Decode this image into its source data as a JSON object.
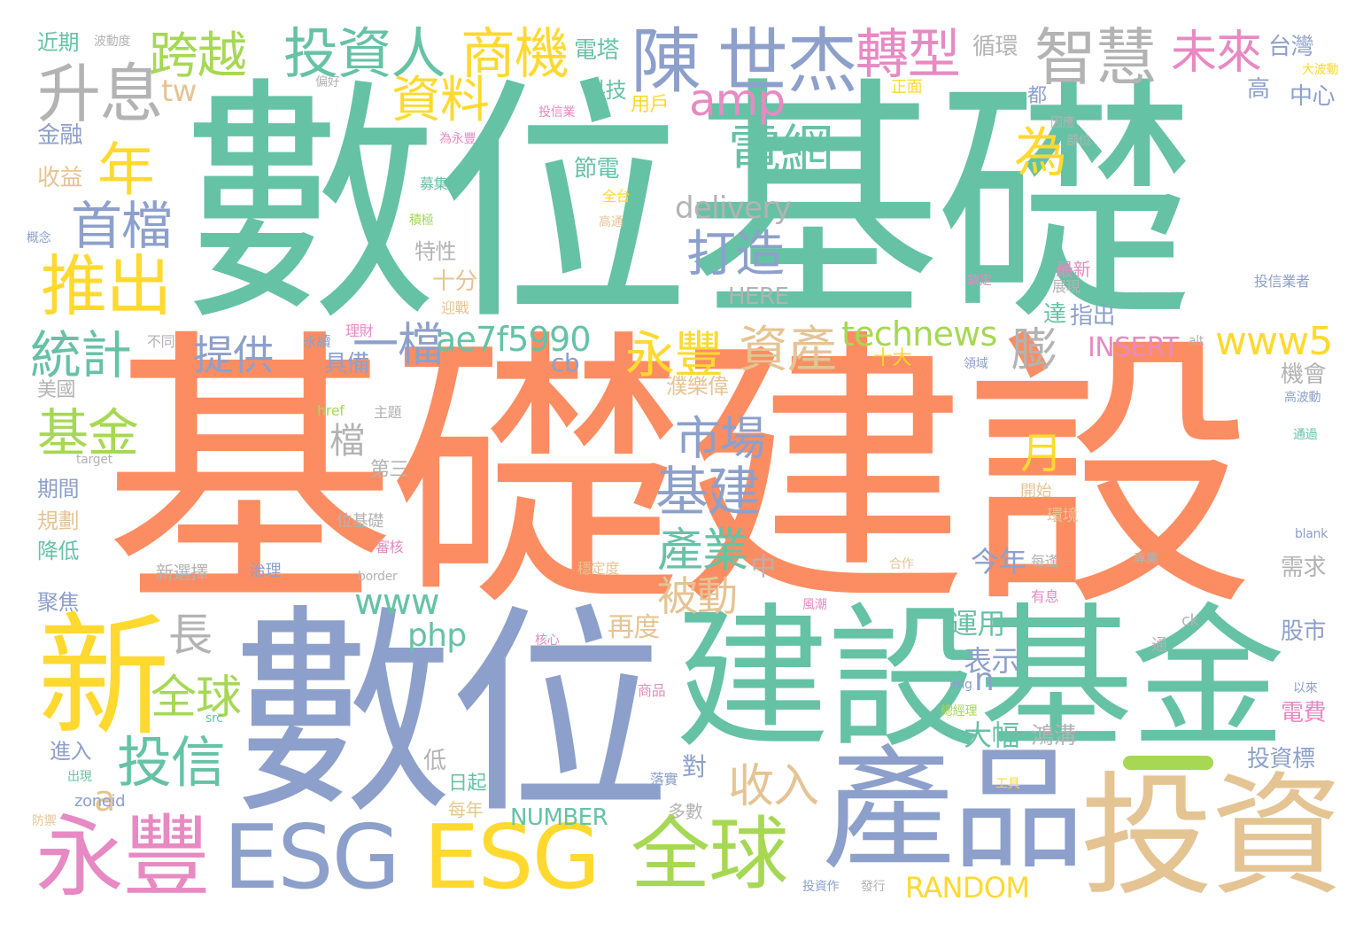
{
  "words": [
    {
      "text": "數位基礎",
      "color": "#66c2a5"
    },
    {
      "text": "基礎建設",
      "color": "#fc8d62"
    },
    {
      "text": "數位",
      "color": "#8da0cb"
    },
    {
      "text": "建設基金",
      "color": "#66c2a5"
    },
    {
      "text": "產品",
      "color": "#8da0cb"
    },
    {
      "text": "投資",
      "color": "#e5c494"
    },
    {
      "text": "新",
      "color": "#ffd92f"
    },
    {
      "text": "永豐",
      "color": "#e78ac3"
    },
    {
      "text": "ESG",
      "color": "#8da0cb"
    },
    {
      "text": "ESG",
      "color": "#ffd92f"
    },
    {
      "text": "全球",
      "color": "#a6d854"
    },
    {
      "text": "陳",
      "color": "#8da0cb"
    },
    {
      "text": "世杰",
      "color": "#8da0cb"
    },
    {
      "text": "轉型",
      "color": "#e78ac3"
    },
    {
      "text": "智慧",
      "color": "#b3b3b3"
    },
    {
      "text": "投資人",
      "color": "#66c2a5"
    },
    {
      "text": "商機",
      "color": "#ffd92f"
    },
    {
      "text": "未來",
      "color": "#e78ac3"
    },
    {
      "text": "跨越",
      "color": "#a6d854"
    },
    {
      "text": "升息",
      "color": "#b3b3b3"
    },
    {
      "text": "年",
      "color": "#ffd92f"
    },
    {
      "text": "首檔",
      "color": "#8da0cb"
    },
    {
      "text": "推出",
      "color": "#ffd92f"
    },
    {
      "text": "統計",
      "color": "#66c2a5"
    },
    {
      "text": "基金",
      "color": "#a6d854"
    },
    {
      "text": "投信",
      "color": "#66c2a5"
    },
    {
      "text": "電網",
      "color": "#66c2a5"
    },
    {
      "text": "打造",
      "color": "#8da0cb"
    },
    {
      "text": "資料",
      "color": "#ffd92f"
    },
    {
      "text": "amp",
      "color": "#e78ac3"
    },
    {
      "text": "為",
      "color": "#ffd92f"
    },
    {
      "text": "delivery",
      "color": "#b3b3b3"
    },
    {
      "text": "永豐",
      "color": "#ffd92f"
    },
    {
      "text": "資產",
      "color": "#e5c494"
    },
    {
      "text": "technews",
      "color": "#a6d854"
    },
    {
      "text": "www5",
      "color": "#ffd92f"
    },
    {
      "text": "膨",
      "color": "#b3b3b3"
    },
    {
      "text": "一檔",
      "color": "#8da0cb"
    },
    {
      "text": "ae7f5990",
      "color": "#66c2a5"
    },
    {
      "text": "提供",
      "color": "#8da0cb"
    },
    {
      "text": "市場",
      "color": "#8da0cb"
    },
    {
      "text": "基建",
      "color": "#8da0cb"
    },
    {
      "text": "產業",
      "color": "#66c2a5"
    },
    {
      "text": "被動",
      "color": "#e5c494"
    },
    {
      "text": "收入",
      "color": "#e5c494"
    },
    {
      "text": "INSERT",
      "color": "#e78ac3"
    },
    {
      "text": "長",
      "color": "#b3b3b3"
    },
    {
      "text": "全球",
      "color": "#a6d854"
    },
    {
      "text": "www",
      "color": "#66c2a5"
    },
    {
      "text": "php",
      "color": "#66c2a5"
    },
    {
      "text": "a",
      "color": "#e5c494"
    },
    {
      "text": "RANDOM",
      "color": "#ffd92f"
    },
    {
      "text": "NUMBER",
      "color": "#66c2a5"
    },
    {
      "text": "tw",
      "color": "#e5c494"
    },
    {
      "text": "cb",
      "color": "#8da0cb"
    },
    {
      "text": "n",
      "color": "#8da0cb"
    },
    {
      "text": "月",
      "color": "#ffd92f"
    },
    {
      "text": "檔",
      "color": "#b3b3b3"
    },
    {
      "text": "HERE",
      "color": "#b3b3b3"
    },
    {
      "text": "中",
      "color": "#b3b3b3"
    },
    {
      "text": "今年",
      "color": "#8da0cb"
    },
    {
      "text": "運用",
      "color": "#66c2a5"
    },
    {
      "text": "表示",
      "color": "#8da0cb"
    },
    {
      "text": "大幅",
      "color": "#66c2a5"
    },
    {
      "text": "再度",
      "color": "#e5c494"
    },
    {
      "text": "電塔",
      "color": "#66c2a5"
    },
    {
      "text": "科技",
      "color": "#66c2a5"
    },
    {
      "text": "用戶",
      "color": "#ffd92f"
    },
    {
      "text": "節電",
      "color": "#66c2a5"
    },
    {
      "text": "特性",
      "color": "#b3b3b3"
    },
    {
      "text": "十分",
      "color": "#e5c494"
    },
    {
      "text": "具備",
      "color": "#8da0cb"
    },
    {
      "text": "第三",
      "color": "#b3b3b3"
    },
    {
      "text": "濮樂偉",
      "color": "#e5c494"
    },
    {
      "text": "鴻溝",
      "color": "#b3b3b3"
    },
    {
      "text": "對",
      "color": "#8da0cb"
    },
    {
      "text": "低",
      "color": "#b3b3b3"
    },
    {
      "text": "日起",
      "color": "#66c2a5"
    },
    {
      "text": "每年",
      "color": "#e5c494"
    },
    {
      "text": "多數",
      "color": "#b3b3b3"
    },
    {
      "text": "循環",
      "color": "#b3b3b3"
    },
    {
      "text": "台灣",
      "color": "#8da0cb"
    },
    {
      "text": "中心",
      "color": "#8da0cb"
    },
    {
      "text": "高",
      "color": "#8da0cb"
    },
    {
      "text": "都",
      "color": "#8da0cb"
    },
    {
      "text": "正面",
      "color": "#ffd92f"
    },
    {
      "text": "最新",
      "color": "#e78ac3"
    },
    {
      "text": "達",
      "color": "#66c2a5"
    },
    {
      "text": "指出",
      "color": "#8da0cb"
    },
    {
      "text": "十大",
      "color": "#ffd92f"
    },
    {
      "text": "機會",
      "color": "#b3b3b3"
    },
    {
      "text": "需求",
      "color": "#b3b3b3"
    },
    {
      "text": "股市",
      "color": "#8da0cb"
    },
    {
      "text": "電費",
      "color": "#e78ac3"
    },
    {
      "text": "投資標",
      "color": "#8da0cb"
    },
    {
      "text": "近期",
      "color": "#66c2a5"
    },
    {
      "text": "金融",
      "color": "#8da0cb"
    },
    {
      "text": "收益",
      "color": "#e5c494"
    },
    {
      "text": "美國",
      "color": "#b3b3b3"
    },
    {
      "text": "期間",
      "color": "#8da0cb"
    },
    {
      "text": "規劃",
      "color": "#e5c494"
    },
    {
      "text": "降低",
      "color": "#66c2a5"
    },
    {
      "text": "聚焦",
      "color": "#8da0cb"
    },
    {
      "text": "進入",
      "color": "#8da0cb"
    },
    {
      "text": "新選擇",
      "color": "#b3b3b3"
    },
    {
      "text": "位基礎",
      "color": "#b3b3b3"
    },
    {
      "text": "主題",
      "color": "#b3b3b3"
    },
    {
      "text": "永續",
      "color": "#8da0cb"
    },
    {
      "text": "理財",
      "color": "#e78ac3"
    },
    {
      "text": "不同",
      "color": "#b3b3b3"
    },
    {
      "text": "href",
      "color": "#a6d854"
    },
    {
      "text": "target",
      "color": "#b3b3b3"
    },
    {
      "text": "border",
      "color": "#b3b3b3"
    },
    {
      "text": "zoneid",
      "color": "#8da0cb"
    },
    {
      "text": "src",
      "color": "#66c2a5"
    },
    {
      "text": "img",
      "color": "#8da0cb"
    },
    {
      "text": "blank",
      "color": "#8da0cb"
    },
    {
      "text": "alt",
      "color": "#b3b3b3"
    },
    {
      "text": "ck",
      "color": "#b3b3b3"
    },
    {
      "text": "投信業者",
      "color": "#8da0cb"
    },
    {
      "text": "高波動",
      "color": "#8da0cb"
    },
    {
      "text": "大波動",
      "color": "#ffd92f"
    },
    {
      "text": "開始",
      "color": "#e5c494"
    },
    {
      "text": "環境",
      "color": "#e5c494"
    },
    {
      "text": "合作",
      "color": "#e5c494"
    },
    {
      "text": "每逢",
      "color": "#b3b3b3"
    },
    {
      "text": "有息",
      "color": "#e78ac3"
    },
    {
      "text": "通",
      "color": "#b3b3b3"
    },
    {
      "text": "以來",
      "color": "#8da0cb"
    },
    {
      "text": "總經理",
      "color": "#a6d854"
    },
    {
      "text": "商品",
      "color": "#e78ac3"
    },
    {
      "text": "落實",
      "color": "#8da0cb"
    },
    {
      "text": "穩定度",
      "color": "#e5c494"
    },
    {
      "text": "治理",
      "color": "#8da0cb"
    },
    {
      "text": "專業",
      "color": "#b3b3b3"
    },
    {
      "text": "投資作",
      "color": "#8da0cb"
    },
    {
      "text": "發行",
      "color": "#b3b3b3"
    },
    {
      "text": "工具",
      "color": "#ffd92f"
    },
    {
      "text": "全台",
      "color": "#ffd92f"
    },
    {
      "text": "高通",
      "color": "#e5c494"
    },
    {
      "text": "投信業",
      "color": "#e78ac3"
    },
    {
      "text": "為永豐",
      "color": "#e78ac3"
    },
    {
      "text": "募集",
      "color": "#66c2a5"
    },
    {
      "text": "積極",
      "color": "#a6d854"
    },
    {
      "text": "迎戰",
      "color": "#e5c494"
    },
    {
      "text": "因應",
      "color": "#b3b3b3"
    },
    {
      "text": "部位",
      "color": "#b3b3b3"
    },
    {
      "text": "展現",
      "color": "#b3b3b3"
    },
    {
      "text": "鎖定",
      "color": "#e78ac3"
    },
    {
      "text": "領域",
      "color": "#8da0cb"
    },
    {
      "text": "通過",
      "color": "#66c2a5"
    },
    {
      "text": "概念",
      "color": "#8da0cb"
    },
    {
      "text": "波動度",
      "color": "#b3b3b3"
    },
    {
      "text": "偏好",
      "color": "#b3b3b3"
    },
    {
      "text": "出現",
      "color": "#66c2a5"
    },
    {
      "text": "防禦",
      "color": "#e5c494"
    },
    {
      "text": "風潮",
      "color": "#e78ac3"
    },
    {
      "text": "核心",
      "color": "#e78ac3"
    },
    {
      "text": "審核",
      "color": "#e78ac3"
    }
  ]
}
